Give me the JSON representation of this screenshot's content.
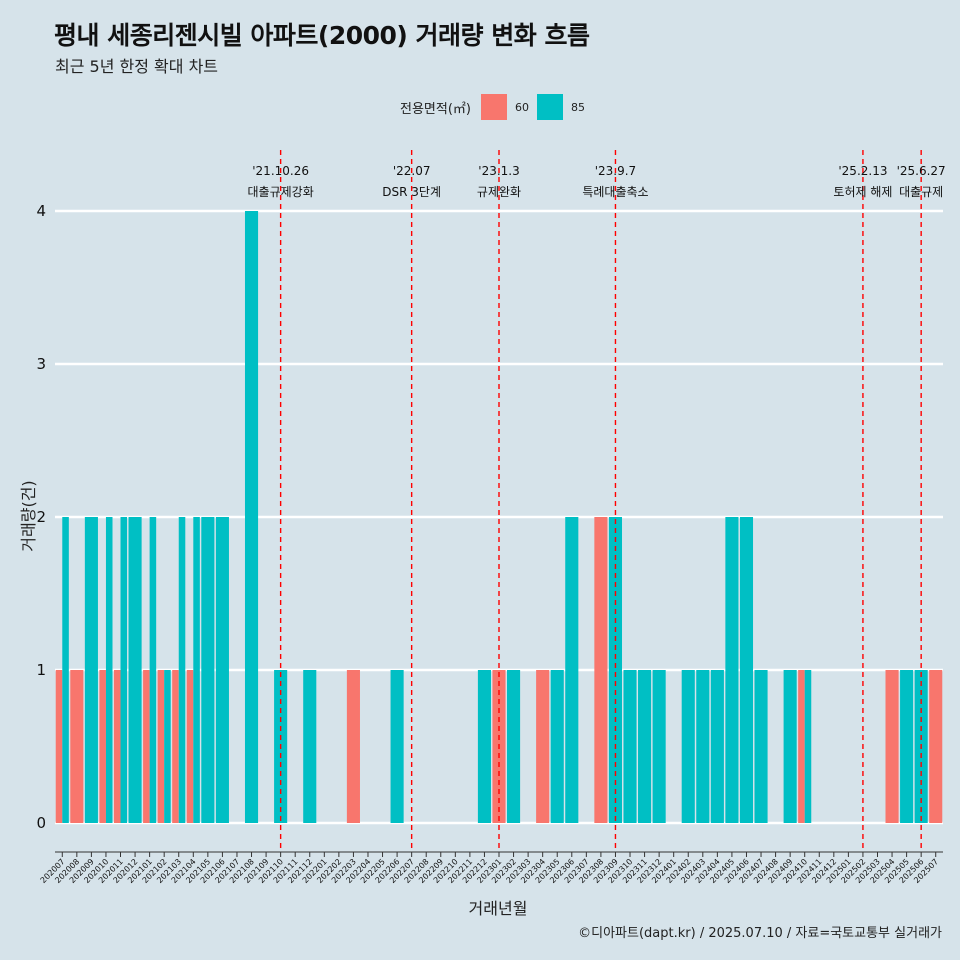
{
  "chart_data": {
    "type": "bar",
    "title": "평내 세종리젠시빌 아파트(2000) 거래량 변화 흐름",
    "subtitle": "최근 5년 한정 확대 차트",
    "xlabel": "거래년월",
    "ylabel": "거래량(건)",
    "ylim": [
      0,
      4
    ],
    "yticks": [
      "0",
      "1",
      "2",
      "3",
      "4"
    ],
    "legend": {
      "title": "전용면적(㎡)",
      "placement": "top",
      "items": [
        {
          "name": "60",
          "color": "#f8766d"
        },
        {
          "name": "85",
          "color": "#00bfc4"
        }
      ]
    },
    "categories": [
      "202007",
      "202008",
      "202009",
      "202010",
      "202011",
      "202012",
      "202101",
      "202102",
      "202103",
      "202104",
      "202105",
      "202106",
      "202107",
      "202108",
      "202109",
      "202110",
      "202111",
      "202112",
      "202201",
      "202202",
      "202203",
      "202204",
      "202205",
      "202206",
      "202207",
      "202208",
      "202209",
      "202210",
      "202211",
      "202212",
      "202301",
      "202302",
      "202303",
      "202304",
      "202305",
      "202306",
      "202307",
      "202308",
      "202309",
      "202310",
      "202311",
      "202312",
      "202401",
      "202402",
      "202403",
      "202404",
      "202405",
      "202406",
      "202407",
      "202408",
      "202409",
      "202410",
      "202411",
      "202412",
      "202501",
      "202502",
      "202503",
      "202504",
      "202505",
      "202506",
      "202507"
    ],
    "series": [
      {
        "name": "60",
        "color": "#f8766d",
        "values": [
          1,
          1,
          0,
          1,
          1,
          0,
          1,
          1,
          1,
          1,
          0,
          0,
          0,
          0,
          0,
          0,
          0,
          0,
          0,
          0,
          1,
          0,
          0,
          0,
          0,
          0,
          0,
          0,
          0,
          0,
          1,
          0,
          0,
          1,
          0,
          0,
          0,
          2,
          0,
          0,
          0,
          0,
          0,
          0,
          0,
          0,
          0,
          0,
          0,
          0,
          0,
          1,
          0,
          0,
          0,
          0,
          0,
          1,
          0,
          0,
          1
        ]
      },
      {
        "name": "85",
        "color": "#00bfc4",
        "values": [
          2,
          0,
          2,
          2,
          2,
          2,
          2,
          1,
          2,
          2,
          2,
          2,
          0,
          4,
          0,
          1,
          0,
          1,
          0,
          0,
          0,
          0,
          0,
          1,
          0,
          0,
          0,
          0,
          0,
          1,
          0,
          1,
          0,
          0,
          1,
          2,
          0,
          0,
          2,
          1,
          1,
          1,
          0,
          1,
          1,
          1,
          2,
          2,
          1,
          0,
          1,
          1,
          0,
          0,
          0,
          0,
          0,
          0,
          1,
          1,
          0
        ]
      }
    ],
    "events": [
      {
        "date": "'21.10.26",
        "label": "대출규제강화",
        "category": "202110"
      },
      {
        "date": "'22.07",
        "label": "DSR 3단계",
        "category": "202207"
      },
      {
        "date": "'23.1.3",
        "label": "규제완화",
        "category": "202301"
      },
      {
        "date": "'23.9.7",
        "label": "특례대출축소",
        "category": "202309"
      },
      {
        "date": "'25.2.13",
        "label": "토허제 해제",
        "category": "202502"
      },
      {
        "date": "'25.6.27",
        "label": "대출규제",
        "category": "202506"
      }
    ],
    "grid": true
  },
  "caption": "©디아파트(dapt.kr) / 2025.07.10 / 자료=국토교통부 실거래가"
}
